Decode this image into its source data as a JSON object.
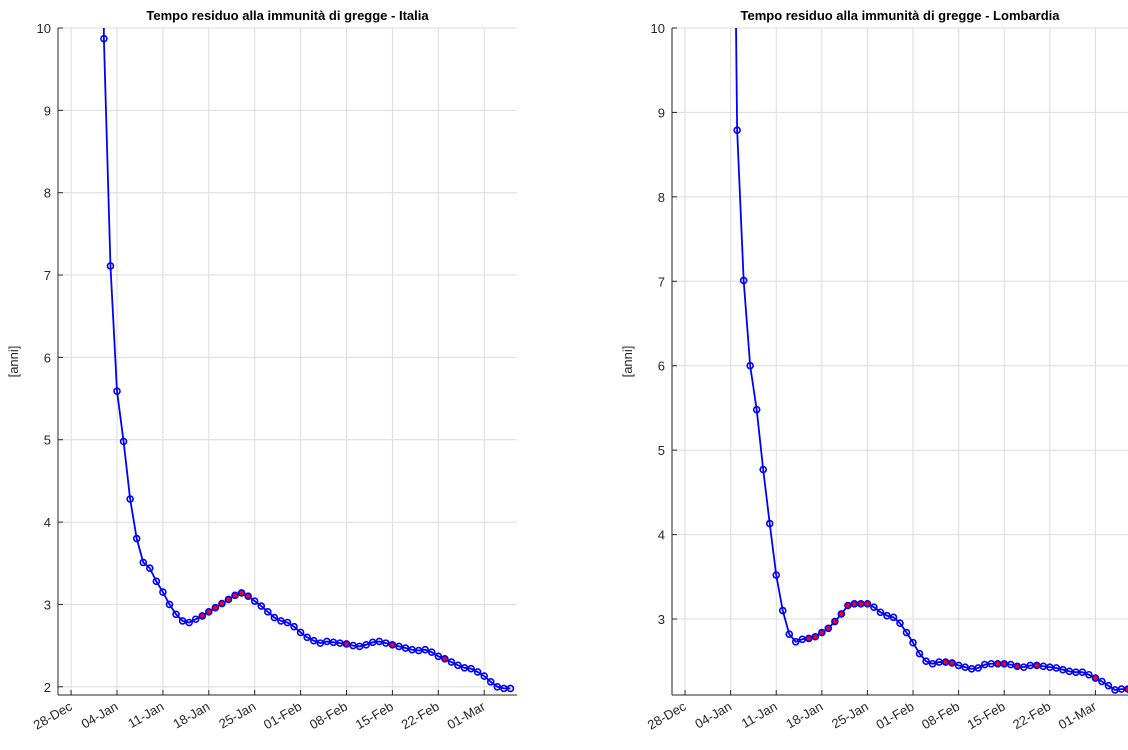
{
  "chart_data": [
    {
      "type": "line",
      "title": "Tempo residuo alla immunità di gregge - Italia",
      "xlabel": "",
      "ylabel": "[anni]",
      "xlim": [
        "2020-12-26",
        "2021-03-06"
      ],
      "ylim": [
        1.9,
        10
      ],
      "yticks": [
        2,
        3,
        4,
        5,
        6,
        7,
        8,
        9,
        10
      ],
      "xticks": [
        {
          "date": "2020-12-28",
          "label": "28-Dec"
        },
        {
          "date": "2021-01-04",
          "label": "04-Jan"
        },
        {
          "date": "2021-01-11",
          "label": "11-Jan"
        },
        {
          "date": "2021-01-18",
          "label": "18-Jan"
        },
        {
          "date": "2021-01-25",
          "label": "25-Jan"
        },
        {
          "date": "2021-02-01",
          "label": "01-Feb"
        },
        {
          "date": "2021-02-08",
          "label": "08-Feb"
        },
        {
          "date": "2021-02-15",
          "label": "15-Feb"
        },
        {
          "date": "2021-02-22",
          "label": "22-Feb"
        },
        {
          "date": "2021-03-01",
          "label": "01-Mar"
        }
      ],
      "grid": true,
      "line_color": "#0000ff",
      "highlight_color": "#ff0000",
      "series": [
        {
          "x": [
            "2021-01-02",
            "2021-01-03",
            "2021-01-04",
            "2021-01-05",
            "2021-01-06",
            "2021-01-07",
            "2021-01-08",
            "2021-01-09",
            "2021-01-10",
            "2021-01-11",
            "2021-01-12",
            "2021-01-13",
            "2021-01-14",
            "2021-01-15",
            "2021-01-16",
            "2021-01-17",
            "2021-01-18",
            "2021-01-19",
            "2021-01-20",
            "2021-01-21",
            "2021-01-22",
            "2021-01-23",
            "2021-01-24",
            "2021-01-25",
            "2021-01-26",
            "2021-01-27",
            "2021-01-28",
            "2021-01-29",
            "2021-01-30",
            "2021-01-31",
            "2021-02-01",
            "2021-02-02",
            "2021-02-03",
            "2021-02-04",
            "2021-02-05",
            "2021-02-06",
            "2021-02-07",
            "2021-02-08",
            "2021-02-09",
            "2021-02-10",
            "2021-02-11",
            "2021-02-12",
            "2021-02-13",
            "2021-02-14",
            "2021-02-15",
            "2021-02-16",
            "2021-02-17",
            "2021-02-18",
            "2021-02-19",
            "2021-02-20",
            "2021-02-21",
            "2021-02-22",
            "2021-02-23",
            "2021-02-24",
            "2021-02-25",
            "2021-02-26",
            "2021-02-27",
            "2021-02-28",
            "2021-03-01",
            "2021-03-02",
            "2021-03-03",
            "2021-03-04",
            "2021-03-05"
          ],
          "values": [
            9.87,
            7.11,
            5.59,
            4.98,
            4.28,
            3.8,
            3.51,
            3.44,
            3.28,
            3.15,
            3.0,
            2.88,
            2.8,
            2.78,
            2.82,
            2.86,
            2.91,
            2.96,
            3.01,
            3.06,
            3.11,
            3.14,
            3.1,
            3.04,
            2.98,
            2.91,
            2.84,
            2.8,
            2.78,
            2.73,
            2.66,
            2.6,
            2.56,
            2.53,
            2.55,
            2.54,
            2.53,
            2.52,
            2.5,
            2.49,
            2.51,
            2.54,
            2.55,
            2.53,
            2.51,
            2.49,
            2.47,
            2.45,
            2.44,
            2.45,
            2.42,
            2.37,
            2.34,
            2.3,
            2.26,
            2.23,
            2.22,
            2.18,
            2.13,
            2.06,
            2.0,
            1.98,
            1.98
          ],
          "highlight": [
            15,
            16,
            17,
            18,
            19,
            20,
            21,
            22,
            37,
            44,
            52
          ]
        }
      ]
    },
    {
      "type": "line",
      "title": "Tempo residuo alla immunità di gregge - Lombardia",
      "xlabel": "",
      "ylabel": "[anni]",
      "xlim": [
        "2020-12-26",
        "2021-03-06"
      ],
      "ylim": [
        2.1,
        10
      ],
      "yticks": [
        3,
        4,
        5,
        6,
        7,
        8,
        9,
        10
      ],
      "xticks": [
        {
          "date": "2020-12-28",
          "label": "28-Dec"
        },
        {
          "date": "2021-01-04",
          "label": "04-Jan"
        },
        {
          "date": "2021-01-11",
          "label": "11-Jan"
        },
        {
          "date": "2021-01-18",
          "label": "18-Jan"
        },
        {
          "date": "2021-01-25",
          "label": "25-Jan"
        },
        {
          "date": "2021-02-01",
          "label": "01-Feb"
        },
        {
          "date": "2021-02-08",
          "label": "08-Feb"
        },
        {
          "date": "2021-02-15",
          "label": "15-Feb"
        },
        {
          "date": "2021-02-22",
          "label": "22-Feb"
        },
        {
          "date": "2021-03-01",
          "label": "01-Mar"
        }
      ],
      "grid": true,
      "line_color": "#0000ff",
      "highlight_color": "#ff0000",
      "series": [
        {
          "x": [
            "2021-01-05",
            "2021-01-06",
            "2021-01-07",
            "2021-01-08",
            "2021-01-09",
            "2021-01-10",
            "2021-01-11",
            "2021-01-12",
            "2021-01-13",
            "2021-01-14",
            "2021-01-15",
            "2021-01-16",
            "2021-01-17",
            "2021-01-18",
            "2021-01-19",
            "2021-01-20",
            "2021-01-21",
            "2021-01-22",
            "2021-01-23",
            "2021-01-24",
            "2021-01-25",
            "2021-01-26",
            "2021-01-27",
            "2021-01-28",
            "2021-01-29",
            "2021-01-30",
            "2021-01-31",
            "2021-02-01",
            "2021-02-02",
            "2021-02-03",
            "2021-02-04",
            "2021-02-05",
            "2021-02-06",
            "2021-02-07",
            "2021-02-08",
            "2021-02-09",
            "2021-02-10",
            "2021-02-11",
            "2021-02-12",
            "2021-02-13",
            "2021-02-14",
            "2021-02-15",
            "2021-02-16",
            "2021-02-17",
            "2021-02-18",
            "2021-02-19",
            "2021-02-20",
            "2021-02-21",
            "2021-02-22",
            "2021-02-23",
            "2021-02-24",
            "2021-02-25",
            "2021-02-26",
            "2021-02-27",
            "2021-02-28",
            "2021-03-01",
            "2021-03-02",
            "2021-03-03",
            "2021-03-04",
            "2021-03-05",
            "2021-03-06"
          ],
          "values": [
            8.79,
            7.01,
            6.0,
            5.48,
            4.77,
            4.13,
            3.52,
            3.1,
            2.82,
            2.73,
            2.76,
            2.77,
            2.79,
            2.84,
            2.89,
            2.97,
            3.06,
            3.16,
            3.18,
            3.18,
            3.18,
            3.14,
            3.08,
            3.04,
            3.02,
            2.95,
            2.84,
            2.72,
            2.59,
            2.5,
            2.47,
            2.49,
            2.49,
            2.48,
            2.45,
            2.43,
            2.41,
            2.42,
            2.46,
            2.47,
            2.47,
            2.47,
            2.46,
            2.44,
            2.43,
            2.45,
            2.45,
            2.44,
            2.43,
            2.42,
            2.4,
            2.38,
            2.37,
            2.37,
            2.34,
            2.3,
            2.26,
            2.21,
            2.16,
            2.17,
            2.17
          ],
          "highlight": [
            11,
            12,
            13,
            14,
            15,
            16,
            17,
            18,
            19,
            20,
            32,
            33,
            40,
            41,
            43,
            46,
            55,
            60
          ]
        }
      ]
    }
  ]
}
